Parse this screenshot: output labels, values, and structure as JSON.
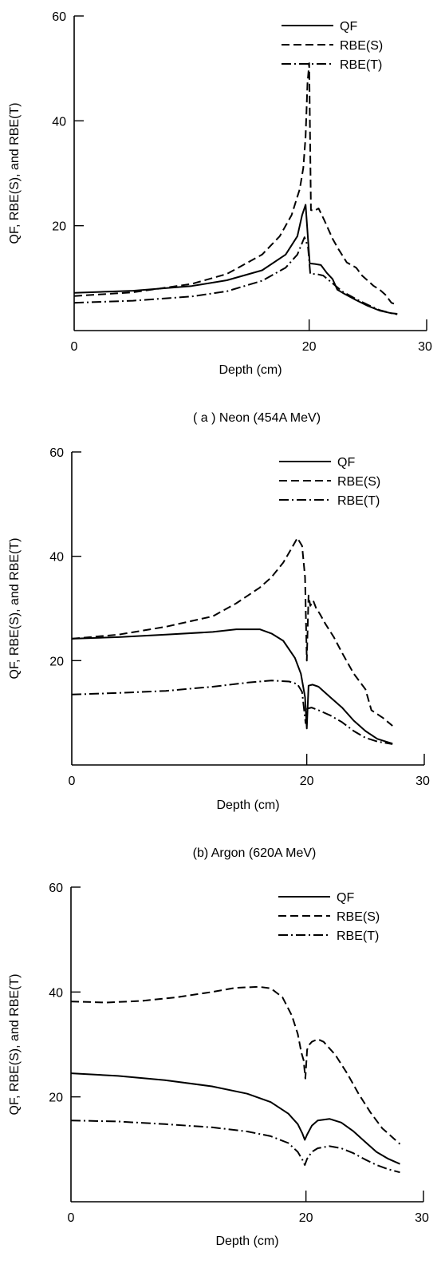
{
  "chart_data": [
    {
      "type": "line",
      "caption": "( a ) Neon (454A MeV)",
      "xlabel": "Depth (cm)",
      "ylabel": "QF, RBE(S), and RBE(T)",
      "xlim": [
        0,
        30
      ],
      "ylim": [
        0,
        60
      ],
      "x_ticks": [
        "0",
        "20",
        "30"
      ],
      "y_ticks": [
        "20",
        "40",
        "60"
      ],
      "grid": false,
      "legend_position": "top-right",
      "series": [
        {
          "name": "QF",
          "style": "solid",
          "x": [
            0,
            5,
            10,
            13,
            16,
            18,
            19,
            19.4,
            19.7,
            19.95,
            20.05,
            20.5,
            21,
            21.5,
            22,
            22.4,
            23,
            24,
            25,
            26,
            27,
            27.5
          ],
          "y": [
            7.2,
            7.6,
            8.5,
            9.6,
            11.5,
            14.5,
            18,
            22,
            24,
            16,
            12.8,
            12.7,
            12.5,
            11,
            9.8,
            7.8,
            7,
            5.8,
            4.7,
            3.8,
            3.3,
            3.2
          ]
        },
        {
          "name": "RBE(S)",
          "style": "dashed",
          "x": [
            0,
            5,
            10,
            13,
            16,
            17.5,
            18.5,
            19.2,
            19.5,
            19.7,
            19.85,
            20.0,
            20.15,
            20.4,
            20.8,
            21.3,
            22,
            22.5,
            23.2,
            24,
            24.5,
            25,
            25.5,
            26,
            26.5,
            27,
            27.5
          ],
          "y": [
            6.6,
            7.3,
            8.9,
            10.8,
            14.5,
            18,
            22,
            27,
            31,
            37,
            47,
            51,
            23,
            22.8,
            23.3,
            21,
            17.5,
            15.5,
            13,
            12,
            10.5,
            9.5,
            8.5,
            7.8,
            6.8,
            5.3,
            4.9
          ]
        },
        {
          "name": "RBE(T)",
          "style": "dashdot",
          "x": [
            0,
            5,
            10,
            13,
            16,
            18,
            19,
            19.6,
            19.9,
            20.1,
            20.6,
            21.2,
            22,
            22.8,
            24,
            25,
            26,
            27,
            27.5
          ],
          "y": [
            5.3,
            5.7,
            6.5,
            7.5,
            9.5,
            12,
            14.5,
            17.8,
            16,
            10.8,
            10.8,
            10.5,
            9,
            7.5,
            6,
            4.9,
            3.9,
            3.3,
            3.1
          ]
        }
      ]
    },
    {
      "type": "line",
      "caption": "(b) Argon (620A MeV)",
      "xlabel": "Depth (cm)",
      "ylabel": "QF, RBE(S), and RBE(T)",
      "xlim": [
        0,
        30
      ],
      "ylim": [
        0,
        60
      ],
      "x_ticks": [
        "0",
        "20",
        "30"
      ],
      "y_ticks": [
        "20",
        "40",
        "60"
      ],
      "grid": false,
      "legend_position": "top-right",
      "series": [
        {
          "name": "QF",
          "style": "solid",
          "x": [
            0,
            4,
            8,
            12,
            14,
            16,
            17,
            18,
            19,
            19.5,
            19.85,
            20.0,
            20.15,
            20.5,
            21,
            22,
            23,
            24,
            25,
            26,
            27,
            27.3
          ],
          "y": [
            24.2,
            24.5,
            25,
            25.5,
            26,
            26,
            25.2,
            23.8,
            20.5,
            17.5,
            13,
            7,
            15.2,
            15.4,
            15,
            13,
            11,
            8.5,
            6.5,
            5,
            4.3,
            4.1
          ]
        },
        {
          "name": "RBE(S)",
          "style": "dashed",
          "x": [
            0,
            4,
            8,
            12,
            14,
            16,
            17,
            18,
            18.7,
            19.2,
            19.6,
            19.85,
            20.0,
            20.15,
            20.3,
            20.55,
            20.8,
            21.1,
            21.6,
            22.3,
            23,
            24,
            25,
            25.5,
            26.5,
            27.3
          ],
          "y": [
            24.2,
            25,
            26.5,
            28.5,
            31,
            34,
            36,
            38.8,
            41.5,
            43.5,
            42,
            36,
            20,
            32.5,
            30.5,
            31.5,
            30,
            29,
            27,
            24.5,
            21.5,
            17.5,
            14.5,
            10.5,
            9,
            7.5
          ]
        },
        {
          "name": "RBE(T)",
          "style": "dashdot",
          "x": [
            0,
            4,
            8,
            12,
            15,
            17,
            18.5,
            19.2,
            19.6,
            19.9,
            20.05,
            20.4,
            21,
            22,
            23,
            24,
            25,
            26,
            27,
            27.3
          ],
          "y": [
            13.5,
            13.8,
            14.2,
            15,
            15.8,
            16.2,
            16,
            15.5,
            14,
            8,
            10.8,
            11,
            10.5,
            9.5,
            8.2,
            6.5,
            5.2,
            4.5,
            4.1,
            4.0
          ]
        }
      ]
    },
    {
      "type": "line",
      "caption": "",
      "xlabel": "Depth (cm)",
      "ylabel": "QF, RBE(S), and RBE(T)",
      "xlim": [
        0,
        30
      ],
      "ylim": [
        0,
        60
      ],
      "x_ticks": [
        "0",
        "20",
        "30"
      ],
      "y_ticks": [
        "20",
        "40",
        "60"
      ],
      "grid": false,
      "legend_position": "top-right",
      "series": [
        {
          "name": "QF",
          "style": "solid",
          "x": [
            0,
            4,
            8,
            12,
            15,
            17,
            18.5,
            19.3,
            19.7,
            19.9,
            20.1,
            20.5,
            21,
            22,
            23,
            24,
            25,
            26,
            27,
            28
          ],
          "y": [
            24.5,
            24,
            23.2,
            22,
            20.6,
            19,
            16.8,
            14.8,
            13,
            11.8,
            12.8,
            14.5,
            15.5,
            15.8,
            15.1,
            13.5,
            11.5,
            9.5,
            8.2,
            7.2
          ]
        },
        {
          "name": "RBE(S)",
          "style": "dashed",
          "x": [
            0,
            3,
            6,
            9,
            12,
            14,
            16,
            17,
            18,
            18.8,
            19.3,
            19.6,
            19.8,
            19.95,
            20.1,
            20.3,
            20.5,
            21,
            21.5,
            22.5,
            23.5,
            24.5,
            25.5,
            26.5,
            27.5,
            28
          ],
          "y": [
            38.2,
            38,
            38.3,
            39,
            40,
            40.8,
            41,
            40.7,
            39,
            35.5,
            32,
            28.5,
            27,
            23.5,
            29,
            30,
            30.5,
            31,
            30.5,
            28,
            24.5,
            20.5,
            17,
            14,
            12,
            11
          ]
        },
        {
          "name": "RBE(T)",
          "style": "dashdot",
          "x": [
            0,
            4,
            8,
            12,
            15,
            17,
            18.5,
            19.3,
            19.7,
            19.9,
            20.1,
            20.5,
            21,
            22,
            23,
            24,
            25,
            26,
            27,
            28
          ],
          "y": [
            15.5,
            15.3,
            14.8,
            14.2,
            13.4,
            12.5,
            11.2,
            9.5,
            8,
            7,
            8.2,
            9.5,
            10.2,
            10.6,
            10.2,
            9.3,
            8.1,
            7,
            6.2,
            5.6
          ]
        }
      ]
    }
  ]
}
